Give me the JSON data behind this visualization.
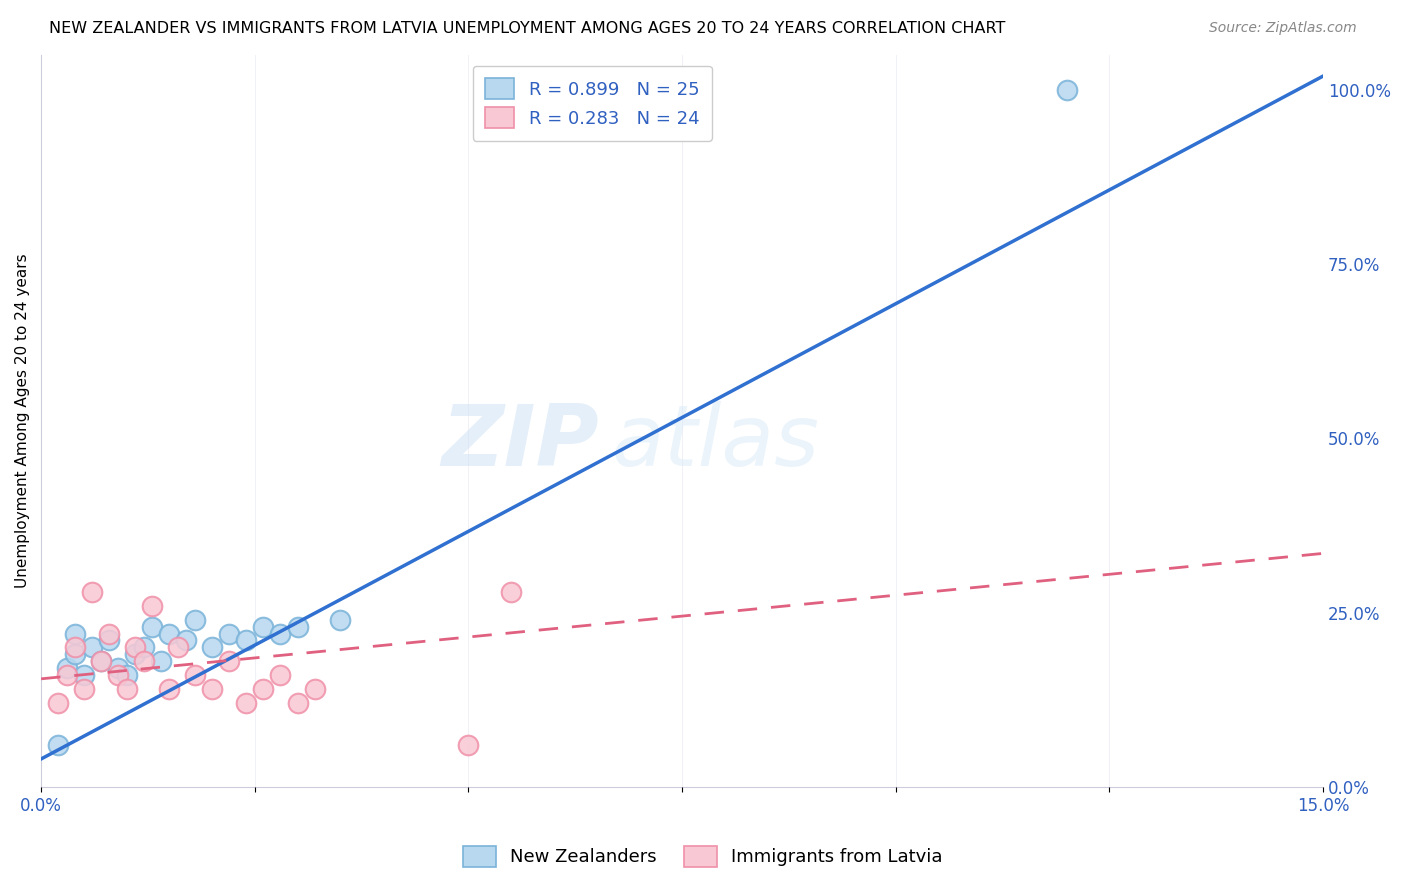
{
  "title": "NEW ZEALANDER VS IMMIGRANTS FROM LATVIA UNEMPLOYMENT AMONG AGES 20 TO 24 YEARS CORRELATION CHART",
  "source": "Source: ZipAtlas.com",
  "ylabel": "Unemployment Among Ages 20 to 24 years",
  "xlim": [
    0.0,
    0.15
  ],
  "ylim": [
    0.0,
    1.05
  ],
  "x_tick_positions": [
    0.0,
    0.025,
    0.05,
    0.075,
    0.1,
    0.125,
    0.15
  ],
  "x_tick_labels": [
    "0.0%",
    "",
    "",
    "",
    "",
    "",
    "15.0%"
  ],
  "y_ticks_right": [
    0.0,
    0.25,
    0.5,
    0.75,
    1.0
  ],
  "y_tick_labels_right": [
    "0.0%",
    "25.0%",
    "50.0%",
    "75.0%",
    "100.0%"
  ],
  "nz_color": "#7ab3d9",
  "nz_fill": "#b8d8f0",
  "latvia_color": "#f090a8",
  "latvia_fill": "#f8c8d4",
  "nz_line_color": "#3070d0",
  "latvia_line_color": "#e06080",
  "R_nz": 0.899,
  "N_nz": 25,
  "R_latvia": 0.283,
  "N_latvia": 24,
  "legend_label_nz": "New Zealanders",
  "legend_label_latvia": "Immigrants from Latvia",
  "watermark_zip": "ZIP",
  "watermark_atlas": "atlas",
  "nz_scatter_x": [
    0.002,
    0.003,
    0.004,
    0.004,
    0.005,
    0.006,
    0.007,
    0.008,
    0.009,
    0.01,
    0.011,
    0.012,
    0.013,
    0.014,
    0.015,
    0.017,
    0.018,
    0.02,
    0.022,
    0.024,
    0.026,
    0.028,
    0.03,
    0.035,
    0.12
  ],
  "nz_scatter_y": [
    0.06,
    0.17,
    0.19,
    0.22,
    0.16,
    0.2,
    0.18,
    0.21,
    0.17,
    0.16,
    0.19,
    0.2,
    0.23,
    0.18,
    0.22,
    0.21,
    0.24,
    0.2,
    0.22,
    0.21,
    0.23,
    0.22,
    0.23,
    0.24,
    1.0
  ],
  "latvia_scatter_x": [
    0.002,
    0.003,
    0.004,
    0.005,
    0.006,
    0.007,
    0.008,
    0.009,
    0.01,
    0.011,
    0.012,
    0.013,
    0.015,
    0.016,
    0.018,
    0.02,
    0.022,
    0.024,
    0.026,
    0.028,
    0.03,
    0.032,
    0.05,
    0.055
  ],
  "latvia_scatter_y": [
    0.12,
    0.16,
    0.2,
    0.14,
    0.28,
    0.18,
    0.22,
    0.16,
    0.14,
    0.2,
    0.18,
    0.26,
    0.14,
    0.2,
    0.16,
    0.14,
    0.18,
    0.12,
    0.14,
    0.16,
    0.12,
    0.14,
    0.06,
    0.28
  ],
  "nz_line_x0": 0.0,
  "nz_line_y0": 0.04,
  "nz_line_x1": 0.15,
  "nz_line_y1": 1.02,
  "lv_line_x0": 0.0,
  "lv_line_y0": 0.155,
  "lv_line_x1": 0.15,
  "lv_line_y1": 0.335,
  "title_fontsize": 11.5,
  "source_fontsize": 10,
  "label_fontsize": 11,
  "tick_fontsize": 12,
  "legend_fontsize": 13
}
